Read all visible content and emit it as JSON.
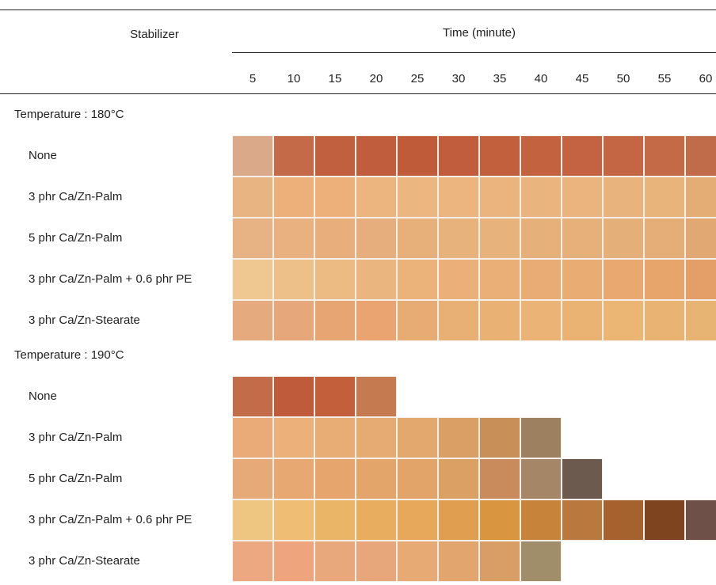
{
  "table": {
    "header": {
      "stabilizer": "Stabilizer",
      "time_label": "Time (minute)",
      "times": [
        5,
        10,
        15,
        20,
        25,
        30,
        35,
        40,
        45,
        50,
        55,
        60
      ]
    },
    "sections": [
      {
        "label": "Temperature : 180°C",
        "rows": [
          {
            "name": "None",
            "colors": [
              "#d9a98a",
              "#c46a48",
              "#c1603f",
              "#c05d3c",
              "#c05b3a",
              "#c15d3c",
              "#c25f3d",
              "#c3623f",
              "#c36341",
              "#c46643",
              "#c46a47",
              "#c06c4a"
            ]
          },
          {
            "name": "3 phr Ca/Zn-Palm",
            "colors": [
              "#e8b582",
              "#eeb07a",
              "#edb07a",
              "#ecb47e",
              "#ebb67f",
              "#ecb47e",
              "#ebb47e",
              "#eab47e",
              "#eab47f",
              "#e9b37d",
              "#e9b37c",
              "#e5ad76"
            ]
          },
          {
            "name": "5 phr Ca/Zn-Palm",
            "colors": [
              "#e8b384",
              "#e9b080",
              "#e8ae7c",
              "#e6ae7c",
              "#e7b07b",
              "#e8b27c",
              "#e7b27c",
              "#e6b07a",
              "#e6b07a",
              "#e5af79",
              "#e5ae78",
              "#e1a873"
            ]
          },
          {
            "name": "3 phr Ca/Zn-Palm + 0.6 phr PE",
            "colors": [
              "#efc891",
              "#edc08a",
              "#ecbb84",
              "#ebb580",
              "#ebb27a",
              "#ebb07a",
              "#eaaf77",
              "#e9ac74",
              "#e9ac73",
              "#e8a870",
              "#e7a56c",
              "#e49f68"
            ]
          },
          {
            "name": "3 phr Ca/Zn-Stearate",
            "colors": [
              "#e5ab7e",
              "#e6a77a",
              "#e7a574",
              "#e9a472",
              "#e6ac73",
              "#e9b075",
              "#e9b274",
              "#ebb476",
              "#ebb373",
              "#ebb574",
              "#e9b473",
              "#e8b474"
            ]
          }
        ]
      },
      {
        "label": "Temperature : 190°C",
        "rows": [
          {
            "name": "None",
            "colors": [
              "#c36c4a",
              "#bf5b3b",
              "#c45f3c",
              "#c57a4f"
            ]
          },
          {
            "name": "3 phr Ca/Zn-Palm",
            "colors": [
              "#eaab78",
              "#ecb07a",
              "#e8ad75",
              "#e6ab72",
              "#e3a86d",
              "#d99f64",
              "#c98f58",
              "#9c8060"
            ]
          },
          {
            "name": "5 phr Ca/Zn-Palm",
            "colors": [
              "#e6a978",
              "#e8a872",
              "#e6a56d",
              "#e4a56b",
              "#e2a469",
              "#dba064",
              "#c98a5c",
              "#a58767",
              "#6b5a4d"
            ]
          },
          {
            "name": "3 phr Ca/Zn-Palm + 0.6 phr PE",
            "colors": [
              "#efc681",
              "#efbd73",
              "#ebb568",
              "#e8ad5e",
              "#e7a85b",
              "#e09e50",
              "#d9953f",
              "#c8833a",
              "#b9783d",
              "#a5622e",
              "#7e4420",
              "#6e5048"
            ]
          },
          {
            "name": "3 phr Ca/Zn-Stearate",
            "colors": [
              "#eba881",
              "#eea57d",
              "#e8a87c",
              "#e7a77a",
              "#e7aa75",
              "#e2a56e",
              "#d89e66",
              "#a08e6a"
            ]
          }
        ]
      }
    ]
  }
}
